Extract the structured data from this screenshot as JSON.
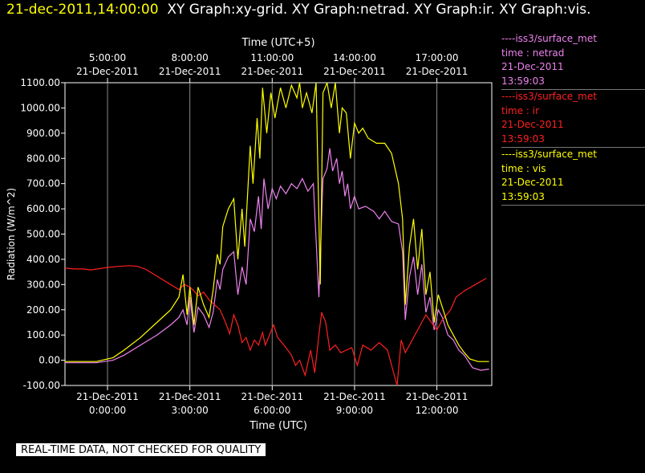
{
  "header": {
    "timestamp": "21-dec-2011,14:00:00",
    "graphs": "XY Graph:xy-grid.  XY Graph:netrad.  XY Graph:ir.  XY Graph:vis."
  },
  "legend": [
    {
      "source": "----iss3/surface_met",
      "label": "time : netrad",
      "date": "21-Dec-2011",
      "time": "13:59:03",
      "color": "#ee82ee"
    },
    {
      "source": "----iss3/surface_met",
      "label": "time : ir",
      "date": "21-Dec-2011",
      "time": "13:59:03",
      "color": "#ff2020"
    },
    {
      "source": "----iss3/surface_met",
      "label": "time : vis",
      "date": "21-Dec-2011",
      "time": "13:59:03",
      "color": "#ffff00"
    }
  ],
  "banner": "REAL-TIME DATA, NOT CHECKED FOR QUALITY",
  "chart_data": {
    "type": "line",
    "xlabel": "Time (UTC)",
    "x2label": "Time (UTC+5)",
    "ylabel": "Radiation (W/m^2)",
    "xlim": [
      -1.55,
      14.0
    ],
    "ylim": [
      -100,
      1100
    ],
    "yticks": [
      1100,
      1000,
      900,
      800,
      700,
      600,
      500,
      400,
      300,
      200,
      100,
      0,
      -100
    ],
    "ytick_labels": [
      "1100.00",
      "1000.00",
      "900.00",
      "800.00",
      "700.00",
      "600.00",
      "500.00",
      "400.00",
      "300.00",
      "200.00",
      "100.00",
      "0.00",
      "-100.00"
    ],
    "xticks_bottom": [
      {
        "x": 0,
        "date": "21-Dec-2011",
        "time": "0:00:00"
      },
      {
        "x": 3,
        "date": "21-Dec-2011",
        "time": "3:00:00"
      },
      {
        "x": 6,
        "date": "21-Dec-2011",
        "time": "6:00:00"
      },
      {
        "x": 9,
        "date": "21-Dec-2011",
        "time": "9:00:00"
      },
      {
        "x": 12,
        "date": "21-Dec-2011",
        "time": "12:00:00"
      }
    ],
    "xticks_top": [
      {
        "x": 0,
        "time": "5:00:00",
        "date": "21-Dec-2011"
      },
      {
        "x": 3,
        "time": "8:00:00",
        "date": "21-Dec-2011"
      },
      {
        "x": 6,
        "time": "11:00:00",
        "date": "21-Dec-2011"
      },
      {
        "x": 9,
        "time": "14:00:00",
        "date": "21-Dec-2011"
      },
      {
        "x": 12,
        "time": "17:00:00",
        "date": "21-Dec-2011"
      }
    ],
    "grid": true,
    "series": [
      {
        "name": "netrad",
        "color": "#ee82ee",
        "points": [
          [
            -1.55,
            -10
          ],
          [
            -0.4,
            -10
          ],
          [
            0.2,
            0
          ],
          [
            0.6,
            20
          ],
          [
            1.2,
            60
          ],
          [
            1.8,
            100
          ],
          [
            2.3,
            140
          ],
          [
            2.6,
            170
          ],
          [
            2.75,
            200
          ],
          [
            2.9,
            140
          ],
          [
            3.0,
            250
          ],
          [
            3.15,
            110
          ],
          [
            3.3,
            210
          ],
          [
            3.5,
            180
          ],
          [
            3.7,
            130
          ],
          [
            3.85,
            190
          ],
          [
            4.0,
            320
          ],
          [
            4.1,
            280
          ],
          [
            4.2,
            360
          ],
          [
            4.4,
            410
          ],
          [
            4.6,
            430
          ],
          [
            4.75,
            260
          ],
          [
            4.9,
            370
          ],
          [
            5.05,
            300
          ],
          [
            5.2,
            560
          ],
          [
            5.35,
            510
          ],
          [
            5.5,
            650
          ],
          [
            5.6,
            520
          ],
          [
            5.7,
            720
          ],
          [
            5.85,
            600
          ],
          [
            6.0,
            680
          ],
          [
            6.15,
            640
          ],
          [
            6.3,
            690
          ],
          [
            6.5,
            660
          ],
          [
            6.7,
            700
          ],
          [
            6.9,
            680
          ],
          [
            7.1,
            720
          ],
          [
            7.3,
            670
          ],
          [
            7.5,
            700
          ],
          [
            7.7,
            250
          ],
          [
            7.85,
            720
          ],
          [
            8.0,
            760
          ],
          [
            8.1,
            840
          ],
          [
            8.2,
            750
          ],
          [
            8.35,
            800
          ],
          [
            8.45,
            700
          ],
          [
            8.55,
            750
          ],
          [
            8.65,
            650
          ],
          [
            8.75,
            700
          ],
          [
            8.85,
            600
          ],
          [
            9.0,
            650
          ],
          [
            9.15,
            600
          ],
          [
            9.4,
            610
          ],
          [
            9.7,
            590
          ],
          [
            9.9,
            560
          ],
          [
            10.1,
            590
          ],
          [
            10.35,
            550
          ],
          [
            10.6,
            540
          ],
          [
            10.75,
            430
          ],
          [
            10.85,
            160
          ],
          [
            11.0,
            330
          ],
          [
            11.15,
            410
          ],
          [
            11.3,
            260
          ],
          [
            11.45,
            380
          ],
          [
            11.6,
            190
          ],
          [
            11.75,
            250
          ],
          [
            11.9,
            120
          ],
          [
            12.05,
            200
          ],
          [
            12.2,
            170
          ],
          [
            12.4,
            100
          ],
          [
            12.6,
            80
          ],
          [
            12.8,
            40
          ],
          [
            13.0,
            20
          ],
          [
            13.3,
            -30
          ],
          [
            13.6,
            -40
          ],
          [
            13.9,
            -35
          ]
        ]
      },
      {
        "name": "ir",
        "color": "#ff2020",
        "points": [
          [
            -1.55,
            365
          ],
          [
            -1.2,
            362
          ],
          [
            -0.9,
            362
          ],
          [
            -0.6,
            358
          ],
          [
            -0.3,
            363
          ],
          [
            0.0,
            368
          ],
          [
            0.4,
            372
          ],
          [
            0.8,
            375
          ],
          [
            1.1,
            372
          ],
          [
            1.4,
            360
          ],
          [
            1.7,
            340
          ],
          [
            2.0,
            320
          ],
          [
            2.3,
            300
          ],
          [
            2.6,
            280
          ],
          [
            2.8,
            300
          ],
          [
            3.0,
            290
          ],
          [
            3.15,
            275
          ],
          [
            3.3,
            255
          ],
          [
            3.5,
            270
          ],
          [
            3.7,
            240
          ],
          [
            3.9,
            220
          ],
          [
            4.1,
            200
          ],
          [
            4.3,
            150
          ],
          [
            4.45,
            105
          ],
          [
            4.6,
            180
          ],
          [
            4.75,
            140
          ],
          [
            4.9,
            70
          ],
          [
            5.05,
            90
          ],
          [
            5.2,
            40
          ],
          [
            5.35,
            80
          ],
          [
            5.5,
            60
          ],
          [
            5.65,
            110
          ],
          [
            5.75,
            60
          ],
          [
            5.9,
            100
          ],
          [
            6.05,
            140
          ],
          [
            6.2,
            90
          ],
          [
            6.35,
            70
          ],
          [
            6.5,
            50
          ],
          [
            6.7,
            20
          ],
          [
            6.85,
            -20
          ],
          [
            7.0,
            0
          ],
          [
            7.2,
            -60
          ],
          [
            7.4,
            40
          ],
          [
            7.55,
            -50
          ],
          [
            7.7,
            100
          ],
          [
            7.8,
            190
          ],
          [
            7.95,
            150
          ],
          [
            8.1,
            40
          ],
          [
            8.3,
            60
          ],
          [
            8.5,
            30
          ],
          [
            8.7,
            40
          ],
          [
            8.9,
            50
          ],
          [
            9.1,
            -20
          ],
          [
            9.3,
            60
          ],
          [
            9.6,
            40
          ],
          [
            9.9,
            70
          ],
          [
            10.2,
            40
          ],
          [
            10.45,
            -60
          ],
          [
            10.55,
            -100
          ],
          [
            10.7,
            80
          ],
          [
            10.85,
            30
          ],
          [
            11.0,
            60
          ],
          [
            11.2,
            100
          ],
          [
            11.4,
            140
          ],
          [
            11.6,
            180
          ],
          [
            11.8,
            150
          ],
          [
            12.0,
            120
          ],
          [
            12.2,
            160
          ],
          [
            12.5,
            200
          ],
          [
            12.7,
            250
          ],
          [
            13.0,
            275
          ],
          [
            13.4,
            300
          ],
          [
            13.8,
            325
          ]
        ]
      },
      {
        "name": "vis",
        "color": "#ffff00",
        "points": [
          [
            -1.55,
            -5
          ],
          [
            -0.4,
            -5
          ],
          [
            0.2,
            10
          ],
          [
            0.6,
            40
          ],
          [
            1.2,
            90
          ],
          [
            1.8,
            150
          ],
          [
            2.3,
            200
          ],
          [
            2.6,
            250
          ],
          [
            2.75,
            340
          ],
          [
            2.9,
            180
          ],
          [
            3.0,
            290
          ],
          [
            3.15,
            140
          ],
          [
            3.3,
            290
          ],
          [
            3.5,
            220
          ],
          [
            3.7,
            170
          ],
          [
            3.85,
            280
          ],
          [
            4.0,
            420
          ],
          [
            4.1,
            380
          ],
          [
            4.2,
            530
          ],
          [
            4.4,
            600
          ],
          [
            4.6,
            640
          ],
          [
            4.75,
            400
          ],
          [
            4.9,
            600
          ],
          [
            5.0,
            450
          ],
          [
            5.2,
            850
          ],
          [
            5.3,
            700
          ],
          [
            5.45,
            960
          ],
          [
            5.55,
            800
          ],
          [
            5.65,
            1080
          ],
          [
            5.8,
            900
          ],
          [
            5.95,
            1060
          ],
          [
            6.1,
            960
          ],
          [
            6.3,
            1080
          ],
          [
            6.5,
            1000
          ],
          [
            6.7,
            1090
          ],
          [
            6.9,
            1040
          ],
          [
            7.0,
            1100
          ],
          [
            7.1,
            1000
          ],
          [
            7.25,
            1060
          ],
          [
            7.45,
            980
          ],
          [
            7.6,
            1100
          ],
          [
            7.75,
            300
          ],
          [
            7.85,
            1060
          ],
          [
            8.0,
            1100
          ],
          [
            8.15,
            1000
          ],
          [
            8.3,
            1100
          ],
          [
            8.45,
            900
          ],
          [
            8.55,
            1000
          ],
          [
            8.7,
            980
          ],
          [
            8.85,
            800
          ],
          [
            9.0,
            940
          ],
          [
            9.15,
            900
          ],
          [
            9.3,
            920
          ],
          [
            9.5,
            880
          ],
          [
            9.8,
            860
          ],
          [
            10.1,
            860
          ],
          [
            10.35,
            820
          ],
          [
            10.6,
            700
          ],
          [
            10.75,
            560
          ],
          [
            10.85,
            220
          ],
          [
            11.0,
            450
          ],
          [
            11.15,
            560
          ],
          [
            11.3,
            360
          ],
          [
            11.45,
            520
          ],
          [
            11.6,
            260
          ],
          [
            11.75,
            350
          ],
          [
            11.9,
            150
          ],
          [
            12.05,
            260
          ],
          [
            12.2,
            210
          ],
          [
            12.4,
            140
          ],
          [
            12.6,
            100
          ],
          [
            12.8,
            60
          ],
          [
            13.0,
            30
          ],
          [
            13.2,
            5
          ],
          [
            13.5,
            -5
          ],
          [
            13.9,
            -5
          ]
        ]
      }
    ]
  }
}
